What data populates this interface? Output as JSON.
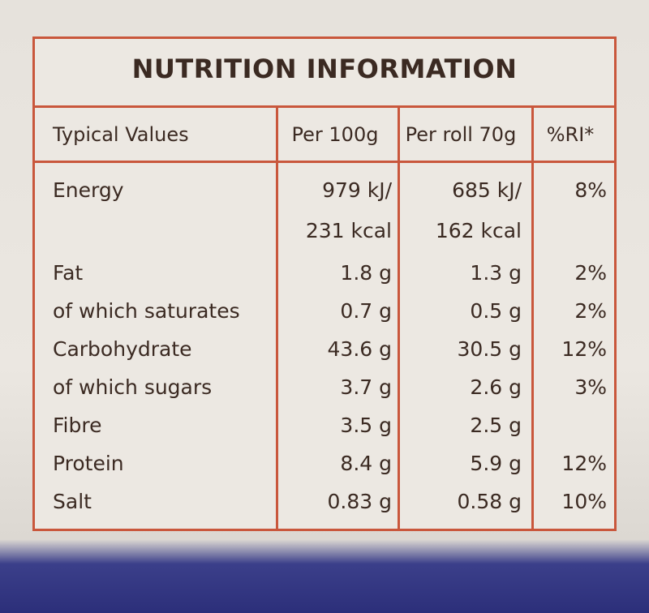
{
  "title": "NUTRITION INFORMATION",
  "table": {
    "header": [
      "Typical Values",
      "Per 100g",
      "Per roll 70g",
      "%RI*"
    ],
    "rows": [
      [
        [
          "Energy"
        ],
        [
          "979 kJ/",
          "231 kcal"
        ],
        [
          "685 kJ/",
          "162 kcal"
        ],
        [
          "8%"
        ]
      ],
      [
        [
          "Fat"
        ],
        [
          "1.8 g"
        ],
        [
          "1.3 g"
        ],
        [
          "2%"
        ]
      ],
      [
        [
          "of which saturates"
        ],
        [
          "0.7 g"
        ],
        [
          "0.5 g"
        ],
        [
          "2%"
        ]
      ],
      [
        [
          "Carbohydrate"
        ],
        [
          "43.6 g"
        ],
        [
          "30.5 g"
        ],
        [
          "12%"
        ]
      ],
      [
        [
          "of which sugars"
        ],
        [
          "3.7 g"
        ],
        [
          "2.6 g"
        ],
        [
          "3%"
        ]
      ],
      [
        [
          "Fibre"
        ],
        [
          "3.5 g"
        ],
        [
          "2.5 g"
        ]
      ],
      [
        [
          "Protein"
        ],
        [
          "8.4 g"
        ],
        [
          "5.9 g"
        ],
        [
          "12%"
        ]
      ],
      [
        [
          "Salt"
        ],
        [
          "0.83 g"
        ],
        [
          "0.58 g"
        ],
        [
          "10%"
        ]
      ]
    ]
  }
}
